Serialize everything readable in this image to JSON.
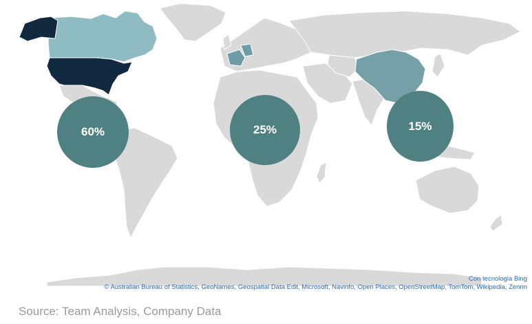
{
  "map": {
    "colors": {
      "land": "#d9d9d9",
      "border": "#ffffff",
      "usa": "#122a40",
      "alaska": "#122a40",
      "canada": "#8fbcc2",
      "france": "#6e9ca6",
      "germany": "#6e9ca6",
      "china": "#76a0a8",
      "bubble": "#4f8183"
    },
    "highlighted_regions": [
      "United States",
      "Canada",
      "France",
      "Germany",
      "China"
    ],
    "bubbles": [
      {
        "id": "americas",
        "label": "60%",
        "value": 60
      },
      {
        "id": "europe-africa",
        "label": "25%",
        "value": 25
      },
      {
        "id": "asia",
        "label": "15%",
        "value": 15
      }
    ]
  },
  "attribution": {
    "provider": "Con tecnologia Bing",
    "credits": "© Australian Bureau of Statistics, GeoNames, Geospatial Data Edit, Microsoft, Navinfo, Open Places, OpenStreetMap, TomTom, Wikipedia, Zenrin"
  },
  "source_note": "Source: Team Analysis,  Company Data"
}
